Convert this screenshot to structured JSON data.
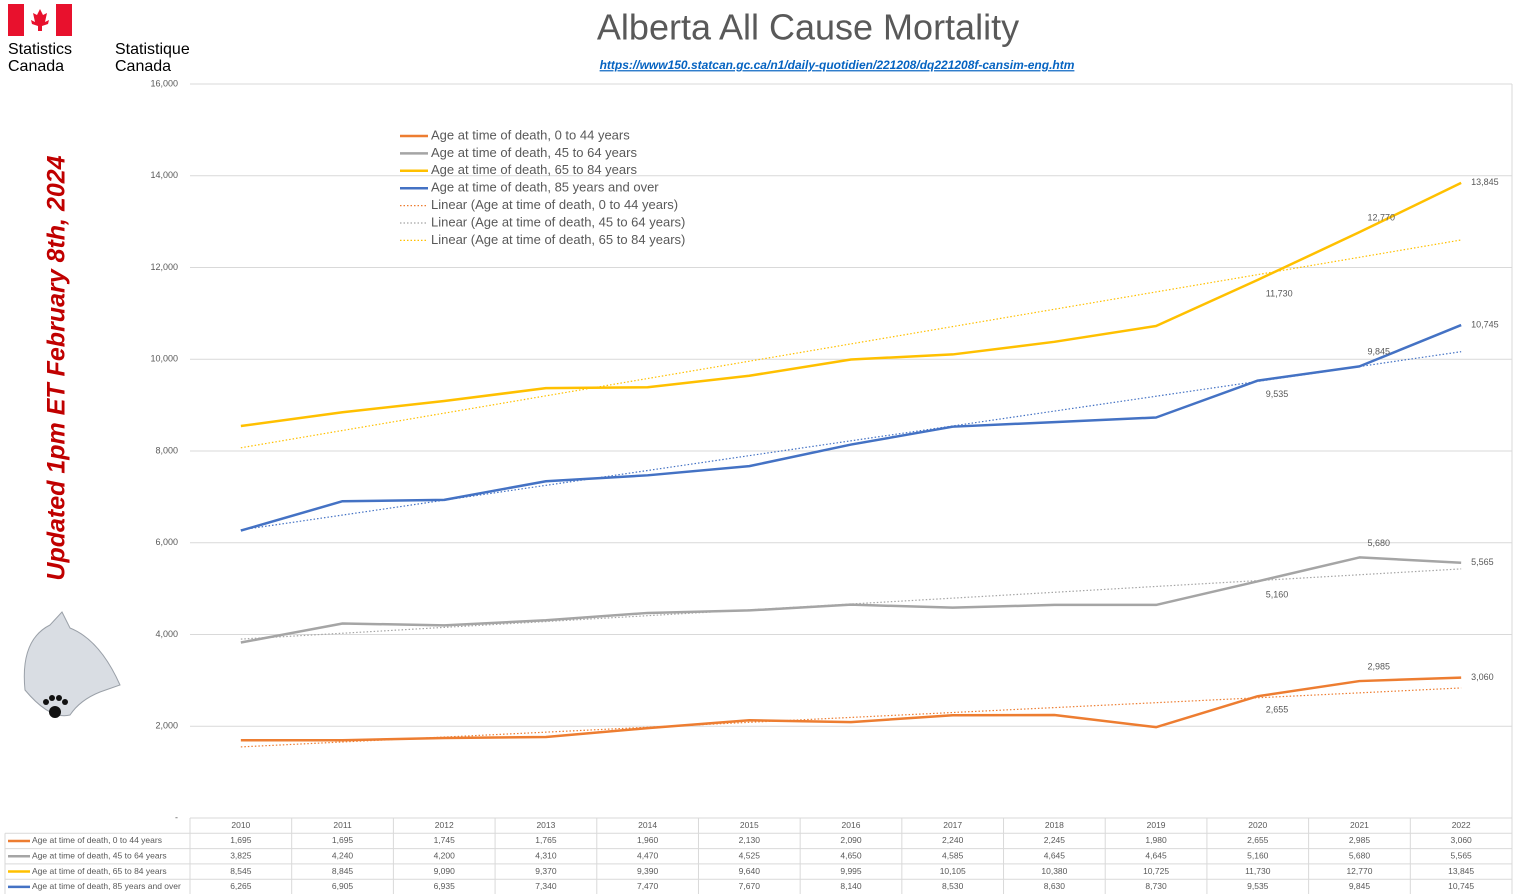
{
  "header": {
    "logo_en": [
      "Statistics",
      "Canada"
    ],
    "logo_fr": [
      "Statistique",
      "Canada"
    ]
  },
  "note": "Updated 1pm ET February 8th, 2024",
  "chart_data": {
    "type": "line",
    "title": "Alberta All Cause Mortality",
    "subtitle": "https://www150.statcan.gc.ca/n1/daily-quotidien/221208/dq221208f-cansim-eng.htm",
    "categories": [
      "2010",
      "2011",
      "2012",
      "2013",
      "2014",
      "2015",
      "2016",
      "2017",
      "2018",
      "2019",
      "2020",
      "2021",
      "2022"
    ],
    "ylim": [
      0,
      16000
    ],
    "yticks": [
      {
        "value": 0,
        "label": "-"
      },
      {
        "value": 2000,
        "label": "2,000"
      },
      {
        "value": 4000,
        "label": "4,000"
      },
      {
        "value": 6000,
        "label": "6,000"
      },
      {
        "value": 8000,
        "label": "8,000"
      },
      {
        "value": 10000,
        "label": "10,000"
      },
      {
        "value": 12000,
        "label": "12,000"
      },
      {
        "value": 14000,
        "label": "14,000"
      },
      {
        "value": 16000,
        "label": "16,000"
      }
    ],
    "grid": true,
    "series": [
      {
        "name": "Age at time of death, 0 to 44 years",
        "color": "#ed7d31",
        "values": [
          1695,
          1695,
          1745,
          1765,
          1960,
          2130,
          2090,
          2240,
          2245,
          1980,
          2655,
          2985,
          3060
        ],
        "value_labels": [
          "1,695",
          "1,695",
          "1,745",
          "1,765",
          "1,960",
          "2,130",
          "2,090",
          "2,240",
          "2,245",
          "1,980",
          "2,655",
          "2,985",
          "3,060"
        ]
      },
      {
        "name": "Age at time of death, 45 to 64 years",
        "color": "#a5a5a5",
        "values": [
          3825,
          4240,
          4200,
          4310,
          4470,
          4525,
          4650,
          4585,
          4645,
          4645,
          5160,
          5680,
          5565
        ],
        "value_labels": [
          "3,825",
          "4,240",
          "4,200",
          "4,310",
          "4,470",
          "4,525",
          "4,650",
          "4,585",
          "4,645",
          "4,645",
          "5,160",
          "5,680",
          "5,565"
        ]
      },
      {
        "name": "Age at time of death, 65 to 84 years",
        "color": "#ffc000",
        "values": [
          8545,
          8845,
          9090,
          9370,
          9390,
          9640,
          9995,
          10105,
          10380,
          10725,
          11730,
          12770,
          13845
        ],
        "value_labels": [
          "8,545",
          "8,845",
          "9,090",
          "9,370",
          "9,390",
          "9,640",
          "9,995",
          "10,105",
          "10,380",
          "10,725",
          "11,730",
          "12,770",
          "13,845"
        ]
      },
      {
        "name": "Age at time of death, 85 years and over",
        "color": "#4472c4",
        "values": [
          6265,
          6905,
          6935,
          7340,
          7470,
          7670,
          8140,
          8530,
          8630,
          8730,
          9535,
          9845,
          10745
        ],
        "value_labels": [
          "6,265",
          "6,905",
          "6,935",
          "7,340",
          "7,470",
          "7,670",
          "8,140",
          "8,530",
          "8,630",
          "8,730",
          "9,535",
          "9,845",
          "10,745"
        ]
      }
    ],
    "trendlines": [
      {
        "name": "Linear (Age at time of death, 0 to 44 years)",
        "color": "#ed7d31",
        "values": [
          1550,
          2835
        ]
      },
      {
        "name": "Linear (Age at time of death, 45 to 64 years)",
        "color": "#a5a5a5",
        "values": [
          3900,
          5430
        ]
      },
      {
        "name": "Linear (Age at time of death, 65 to 84 years)",
        "color": "#ffc000",
        "values": [
          8070,
          12600
        ]
      },
      {
        "color": "#4472c4",
        "values": [
          6280,
          10165
        ]
      }
    ]
  }
}
